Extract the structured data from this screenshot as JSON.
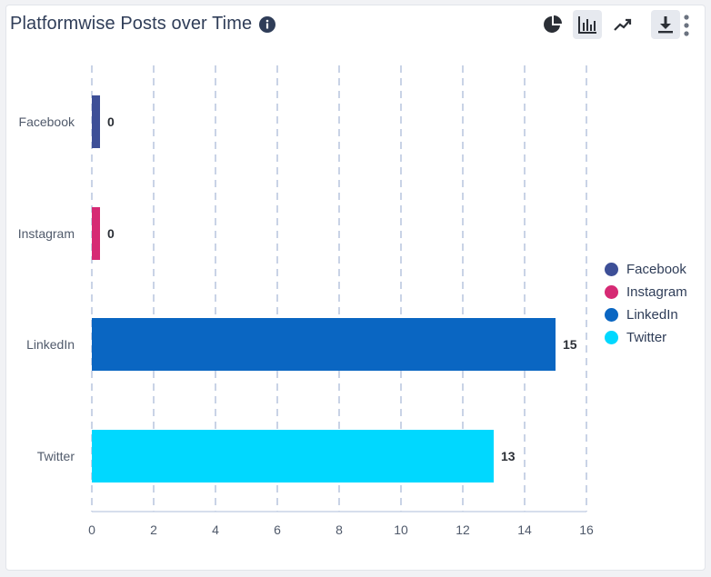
{
  "header": {
    "title": "Platformwise Posts over Time"
  },
  "toolbar": {
    "icons": [
      "pie-chart-icon",
      "bar-chart-icon",
      "line-chart-icon",
      "download-icon",
      "more-vertical-icon"
    ],
    "active": "bar-chart-icon"
  },
  "chart_data": {
    "type": "bar",
    "orientation": "horizontal",
    "categories": [
      "Facebook",
      "Instagram",
      "LinkedIn",
      "Twitter"
    ],
    "values": [
      0,
      0,
      15,
      13
    ],
    "colors": [
      "#3d4f97",
      "#d62a74",
      "#0a66c2",
      "#00d8ff"
    ],
    "xlim": [
      0,
      16
    ],
    "xticks": [
      0,
      2,
      4,
      6,
      8,
      10,
      12,
      14,
      16
    ],
    "grid": true,
    "legend": {
      "position": "right",
      "entries": [
        "Facebook",
        "Instagram",
        "LinkedIn",
        "Twitter"
      ]
    },
    "title": "",
    "xlabel": "",
    "ylabel": ""
  }
}
